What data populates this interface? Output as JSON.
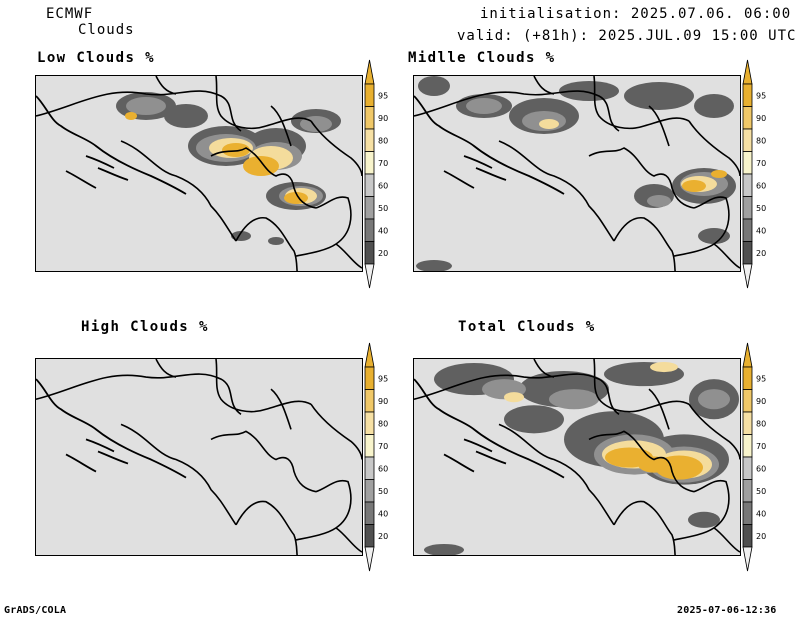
{
  "header": {
    "model": "ECMWF",
    "product": "Clouds",
    "init": "initialisation: 2025.07.06. 06:00 UTC",
    "valid": "valid: (+81h): 2025.JUL.09 15:00 UTC"
  },
  "panels": [
    {
      "title": "Low Clouds %"
    },
    {
      "title": "Midlle Clouds %"
    },
    {
      "title": "High Clouds %"
    },
    {
      "title": "Total Clouds %"
    }
  ],
  "colorbar": {
    "levels": [
      "95",
      "90",
      "80",
      "70",
      "60",
      "50",
      "40",
      "20"
    ],
    "colors": [
      "#e8b030",
      "#f0c868",
      "#f6e0a4",
      "#f8f4cc",
      "#c8c8c8",
      "#a0a0a0",
      "#787878",
      "#505050"
    ],
    "tail_low": "#f0f0f0"
  },
  "footer": {
    "left": "GrADS/COLA",
    "right": "2025-07-06-12:36"
  },
  "colors": {
    "map_bg": "#e0e0e0",
    "cloud_dark": "#606060",
    "cloud_mid": "#909090",
    "cloud_light": "#b8b8b8",
    "cloud_yellow": "#eab030",
    "cloud_pale": "#f4dc9c"
  }
}
